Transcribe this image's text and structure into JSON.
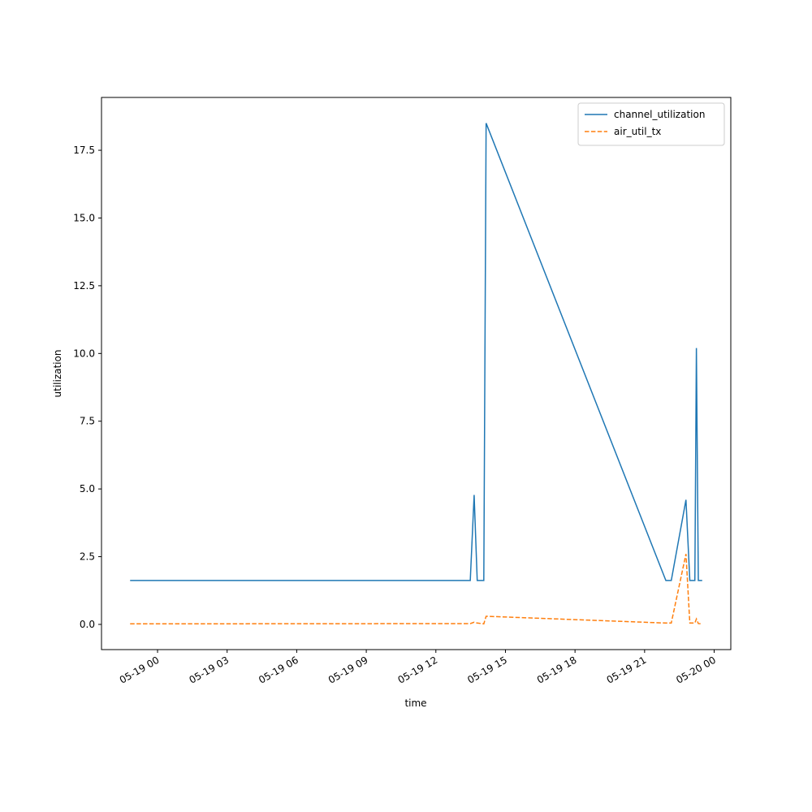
{
  "chart_data": {
    "type": "line",
    "x_label": "time",
    "y_label": "utilization",
    "x": [
      "05-18 22:49",
      "05-19 13:29",
      "05-19 13:39",
      "05-19 13:47",
      "05-19 14:04",
      "05-19 14:10",
      "05-19 21:55",
      "05-19 22:09",
      "05-19 22:47",
      "05-19 22:57",
      "05-19 23:10",
      "05-19 23:14",
      "05-19 23:19",
      "05-19 23:29"
    ],
    "series": [
      {
        "name": "channel_utilization",
        "color": "#1f77b4",
        "dash": "solid",
        "values": [
          1.62,
          1.62,
          4.78,
          1.62,
          1.62,
          18.5,
          1.62,
          1.62,
          4.6,
          1.62,
          1.62,
          10.2,
          1.62,
          1.62
        ]
      },
      {
        "name": "air_util_tx",
        "color": "#ff7f0e",
        "dash": "dashed",
        "values": [
          0.02,
          0.03,
          0.08,
          0.05,
          0.02,
          0.3,
          0.05,
          0.05,
          2.6,
          0.05,
          0.05,
          0.2,
          0.03,
          0.02
        ]
      }
    ],
    "xlim": [
      "05-18 21:35",
      "05-20 00:43"
    ],
    "xticks": [
      "05-19 00",
      "05-19 03",
      "05-19 06",
      "05-19 09",
      "05-19 12",
      "05-19 15",
      "05-19 18",
      "05-19 21",
      "05-20 00"
    ],
    "ylim": [
      -0.93,
      19.45
    ],
    "yticks": [
      {
        "value": 0,
        "label": "0.0"
      },
      2.5,
      {
        "value": 5,
        "label": "5.0"
      },
      7.5,
      {
        "value": 10,
        "label": "10.0"
      },
      12.5,
      {
        "value": 15,
        "label": "15.0"
      },
      17.5
    ],
    "legend": "upper right",
    "grid": false
  }
}
